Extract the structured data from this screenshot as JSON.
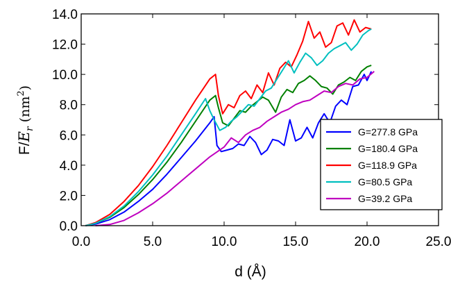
{
  "chart_data": {
    "type": "line",
    "xlabel": "d (Å)",
    "ylabel_prefix": "F/",
    "ylabel_symbol": "E",
    "ylabel_subscript": "r",
    "ylabel_unit_open": " (nm",
    "ylabel_unit_sup": "2",
    "ylabel_unit_close": ")",
    "xlim": [
      0,
      25
    ],
    "ylim": [
      0,
      14
    ],
    "xticks": [
      0,
      5,
      10,
      15,
      20,
      25
    ],
    "yticks": [
      0,
      2,
      4,
      6,
      8,
      10,
      12,
      14
    ],
    "xtick_labels": [
      "0.0",
      "5.0",
      "10.0",
      "15.0",
      "20.0",
      "25.0"
    ],
    "ytick_labels": [
      "0.0",
      "2.0",
      "4.0",
      "6.0",
      "8.0",
      "10.0",
      "12.0",
      "14.0"
    ],
    "legend_position": "lower-right",
    "grid": false,
    "series": [
      {
        "name": "G=277.8 GPa",
        "color": "#0000ff",
        "x": [
          0.3,
          1.0,
          2.0,
          3.0,
          4.0,
          5.0,
          6.0,
          7.0,
          8.0,
          9.0,
          9.3,
          9.5,
          9.8,
          10.2,
          10.6,
          11.0,
          11.4,
          11.8,
          12.2,
          12.6,
          13.0,
          13.4,
          13.8,
          14.2,
          14.6,
          15.0,
          15.4,
          15.8,
          16.2,
          16.6,
          17.0,
          17.4,
          17.8,
          18.2,
          18.6,
          19.0,
          19.4,
          19.8,
          20.0,
          20.3
        ],
        "y": [
          0.0,
          0.1,
          0.4,
          0.9,
          1.6,
          2.4,
          3.4,
          4.5,
          5.6,
          6.8,
          7.2,
          5.3,
          4.9,
          5.0,
          5.1,
          5.4,
          5.3,
          5.9,
          5.5,
          4.7,
          5.0,
          5.7,
          5.6,
          5.3,
          7.0,
          5.6,
          5.8,
          6.5,
          5.8,
          6.8,
          7.4,
          6.8,
          7.9,
          8.3,
          8.0,
          9.2,
          9.3,
          10.0,
          9.6,
          10.2
        ]
      },
      {
        "name": "G=180.4 GPa",
        "color": "#008000",
        "x": [
          0.3,
          1.0,
          2.0,
          3.0,
          4.0,
          5.0,
          6.0,
          7.0,
          8.0,
          9.0,
          9.4,
          9.6,
          9.9,
          10.3,
          10.7,
          11.1,
          11.5,
          11.9,
          12.3,
          12.7,
          13.1,
          13.6,
          14.0,
          14.4,
          14.8,
          15.2,
          15.6,
          16.0,
          16.4,
          16.8,
          17.2,
          17.6,
          18.0,
          18.4,
          18.8,
          19.2,
          19.6,
          20.0,
          20.3
        ],
        "y": [
          0.0,
          0.15,
          0.55,
          1.2,
          2.05,
          3.05,
          4.2,
          5.5,
          6.9,
          8.3,
          8.6,
          7.8,
          6.8,
          6.6,
          7.1,
          7.6,
          7.5,
          7.9,
          8.2,
          8.5,
          8.3,
          7.5,
          8.5,
          9.0,
          8.8,
          9.4,
          9.6,
          9.9,
          9.6,
          9.2,
          9.1,
          8.7,
          9.3,
          9.5,
          9.8,
          9.6,
          10.2,
          10.5,
          10.6
        ]
      },
      {
        "name": "G=118.9 GPa",
        "color": "#ff0000",
        "x": [
          0.3,
          1.0,
          2.0,
          3.0,
          4.0,
          5.0,
          6.0,
          7.0,
          8.0,
          9.0,
          9.4,
          9.6,
          9.9,
          10.3,
          10.7,
          11.1,
          11.5,
          11.9,
          12.3,
          12.7,
          13.1,
          13.5,
          13.9,
          14.3,
          14.7,
          15.1,
          15.5,
          15.9,
          16.3,
          16.7,
          17.1,
          17.5,
          17.9,
          18.3,
          18.7,
          19.1,
          19.5,
          19.9,
          20.3
        ],
        "y": [
          0.0,
          0.2,
          0.75,
          1.6,
          2.65,
          3.9,
          5.3,
          6.8,
          8.3,
          9.7,
          10.0,
          8.6,
          7.4,
          8.0,
          7.8,
          8.6,
          8.9,
          8.4,
          9.3,
          8.8,
          10.1,
          9.3,
          10.4,
          10.8,
          10.5,
          11.3,
          12.2,
          13.5,
          12.4,
          12.8,
          11.8,
          12.1,
          13.2,
          13.4,
          12.6,
          13.6,
          12.8,
          13.1,
          13.0
        ]
      },
      {
        "name": "G=80.5 GPa",
        "color": "#00bfbf",
        "x": [
          0.3,
          1.0,
          2.0,
          3.0,
          4.0,
          5.0,
          6.0,
          7.0,
          8.0,
          8.7,
          9.0,
          9.3,
          9.7,
          10.1,
          10.5,
          10.9,
          11.3,
          11.7,
          12.1,
          12.5,
          12.9,
          13.3,
          13.7,
          14.1,
          14.5,
          14.9,
          15.3,
          15.7,
          16.1,
          16.5,
          16.9,
          17.3,
          17.7,
          18.1,
          18.5,
          18.9,
          19.3,
          19.7,
          20.1,
          20.3
        ],
        "y": [
          0.0,
          0.15,
          0.6,
          1.3,
          2.25,
          3.35,
          4.6,
          6.0,
          7.4,
          8.4,
          7.6,
          7.0,
          6.3,
          6.5,
          6.9,
          7.2,
          7.6,
          8.0,
          7.9,
          8.4,
          8.9,
          9.1,
          9.7,
          10.3,
          10.9,
          10.1,
          10.8,
          11.4,
          11.1,
          10.6,
          10.9,
          11.4,
          11.7,
          11.9,
          12.1,
          11.6,
          12.0,
          12.6,
          12.9,
          13.0
        ]
      },
      {
        "name": "G=39.2 GPa",
        "color": "#bf00bf",
        "x": [
          1.0,
          2.0,
          3.0,
          4.0,
          5.0,
          6.0,
          7.0,
          8.0,
          9.0,
          10.0,
          10.5,
          11.0,
          11.5,
          12.0,
          12.5,
          13.0,
          13.5,
          14.0,
          14.5,
          15.0,
          15.5,
          16.0,
          16.5,
          17.0,
          17.5,
          18.0,
          18.5,
          19.0,
          19.5,
          20.0,
          20.5
        ],
        "y": [
          0.0,
          0.08,
          0.35,
          0.85,
          1.45,
          2.15,
          2.95,
          3.75,
          4.55,
          5.2,
          5.8,
          5.5,
          6.0,
          6.3,
          6.5,
          6.9,
          7.2,
          7.5,
          7.7,
          8.0,
          8.2,
          8.3,
          8.6,
          8.9,
          8.8,
          9.2,
          9.4,
          9.3,
          9.7,
          9.8,
          10.2
        ]
      }
    ]
  }
}
